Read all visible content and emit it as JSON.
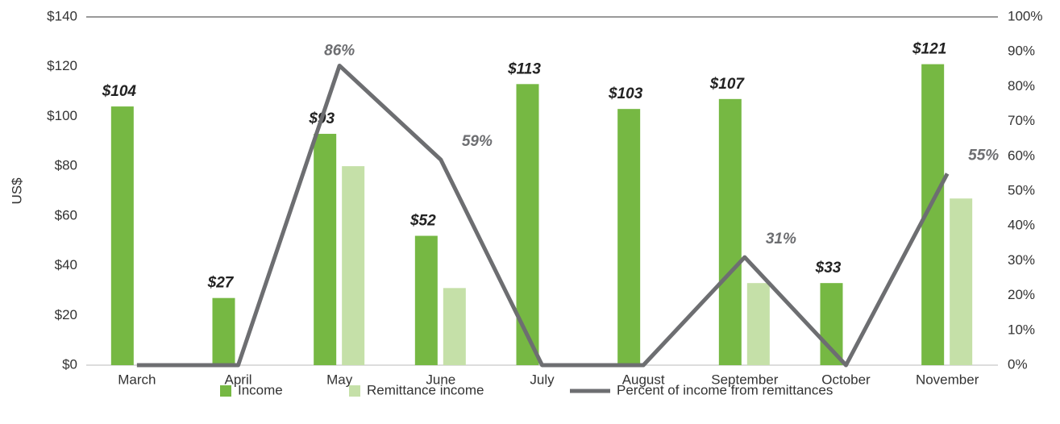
{
  "chart_data": {
    "type": "bar",
    "categories": [
      "March",
      "April",
      "May",
      "June",
      "July",
      "August",
      "September",
      "October",
      "November"
    ],
    "y_axis_label": "US$",
    "ylim": [
      0,
      140
    ],
    "yticks": [
      {
        "value": 0,
        "label": "$0"
      },
      {
        "value": 20,
        "label": "$20"
      },
      {
        "value": 40,
        "label": "$40"
      },
      {
        "value": 60,
        "label": "$60"
      },
      {
        "value": 80,
        "label": "$80"
      },
      {
        "value": 100,
        "label": "$100"
      },
      {
        "value": 120,
        "label": "$120"
      },
      {
        "value": 140,
        "label": "$140"
      }
    ],
    "y2lim": [
      0,
      100
    ],
    "y2ticks": [
      {
        "value": 0,
        "label": "0%"
      },
      {
        "value": 10,
        "label": "10%"
      },
      {
        "value": 20,
        "label": "20%"
      },
      {
        "value": 30,
        "label": "30%"
      },
      {
        "value": 40,
        "label": "40%"
      },
      {
        "value": 50,
        "label": "50%"
      },
      {
        "value": 60,
        "label": "60%"
      },
      {
        "value": 70,
        "label": "70%"
      },
      {
        "value": 80,
        "label": "80%"
      },
      {
        "value": 90,
        "label": "90%"
      },
      {
        "value": 100,
        "label": "100%"
      }
    ],
    "legend": "bottom",
    "series": [
      {
        "name": "Income",
        "type": "bar",
        "color": "#76b843",
        "values": [
          104,
          27,
          93,
          52,
          113,
          103,
          107,
          33,
          121
        ],
        "value_labels": [
          "$104",
          "$27",
          "$93",
          "$52",
          "$113",
          "$103",
          "$107",
          "$33",
          "$121"
        ]
      },
      {
        "name": "Remittance income",
        "type": "bar",
        "color": "#c5e0a8",
        "values": [
          0,
          0,
          80,
          31,
          0,
          0,
          33,
          0,
          67
        ]
      },
      {
        "name": "Percent of income from remittances",
        "type": "line",
        "axis": "y2",
        "color": "#6d6e71",
        "values": [
          0,
          0,
          86,
          59,
          0,
          0,
          31,
          0,
          55
        ],
        "value_labels": [
          null,
          null,
          "86%",
          "59%",
          null,
          null,
          "31%",
          null,
          "55%"
        ]
      }
    ]
  }
}
